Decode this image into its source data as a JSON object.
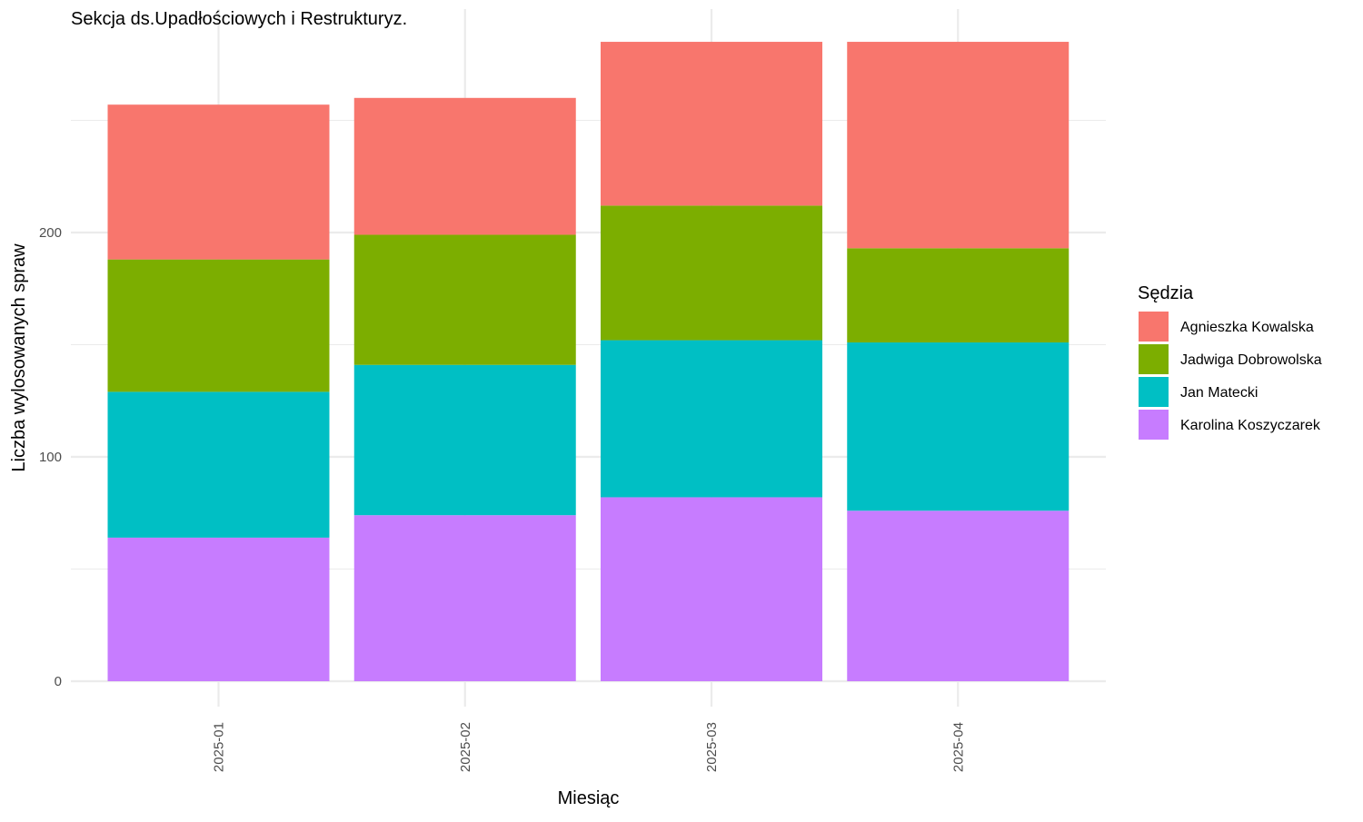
{
  "chart_data": {
    "type": "bar",
    "stacked": true,
    "title": "Sekcja ds.Upadłościowych i Restrukturyz.",
    "xlabel": "Miesiąc",
    "ylabel": "Liczba wylosowanych spraw",
    "categories": [
      "2025-01",
      "2025-02",
      "2025-03",
      "2025-04"
    ],
    "ylim": [
      0,
      290
    ],
    "yticks": [
      0,
      100,
      200
    ],
    "grid": true,
    "x_tick_rotation": "vertical",
    "legend": {
      "title": "Sędzia",
      "position": "right"
    },
    "series": [
      {
        "name": "Karolina Koszyczarek",
        "color": "#C77CFF",
        "values": [
          64,
          74,
          82,
          76
        ]
      },
      {
        "name": "Jan Matecki",
        "color": "#00BFC4",
        "values": [
          65,
          67,
          70,
          75
        ]
      },
      {
        "name": "Jadwiga Dobrowolska",
        "color": "#7CAE00",
        "values": [
          59,
          58,
          60,
          42
        ]
      },
      {
        "name": "Agnieszka Kowalska",
        "color": "#F8766D",
        "values": [
          69,
          61,
          73,
          92
        ]
      }
    ],
    "legend_order": [
      "Agnieszka Kowalska",
      "Jadwiga Dobrowolska",
      "Jan Matecki",
      "Karolina Koszyczarek"
    ],
    "colors": {
      "grid": "#EBEBEB",
      "tick_text": "#4D4D4D"
    }
  }
}
